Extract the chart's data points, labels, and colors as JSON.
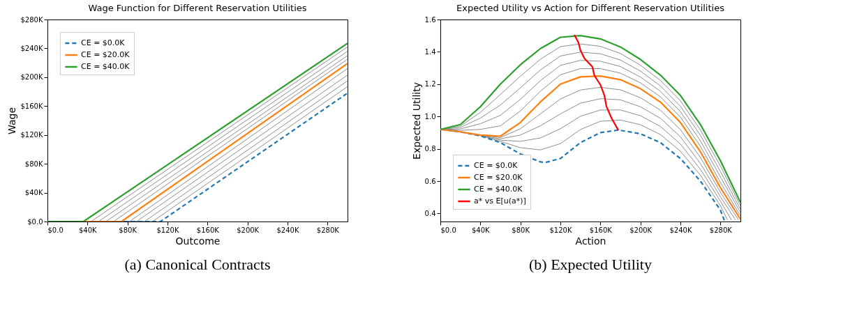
{
  "chart_data": [
    {
      "type": "line",
      "title": "Wage Function for Different Reservation Utilities",
      "xlabel": "Outcome",
      "ylabel": "Wage",
      "grid": false,
      "legend": "top left",
      "xlim": [
        0,
        300
      ],
      "ylim": [
        0,
        280
      ],
      "xticks": [
        {
          "value": 0,
          "label": "$0.0"
        },
        {
          "value": 40,
          "label": "$40K"
        },
        {
          "value": 80,
          "label": "$80K"
        },
        {
          "value": 120,
          "label": "$120K"
        },
        {
          "value": 160,
          "label": "$160K"
        },
        {
          "value": 200,
          "label": "$200K"
        },
        {
          "value": 240,
          "label": "$240K"
        },
        {
          "value": 280,
          "label": "$280K"
        }
      ],
      "yticks": [
        {
          "value": 0,
          "label": "$0.0"
        },
        {
          "value": 40,
          "label": "$40K"
        },
        {
          "value": 80,
          "label": "$80K"
        },
        {
          "value": 120,
          "label": "$120K"
        },
        {
          "value": 160,
          "label": "$160K"
        },
        {
          "value": 200,
          "label": "$200K"
        },
        {
          "value": 240,
          "label": "$240K"
        },
        {
          "value": 280,
          "label": "$280K"
        }
      ],
      "annotations": [
        "(a) Canonical Contracts"
      ],
      "series": [
        {
          "color": "#808080",
          "x": [
            0,
            43.5,
            300
          ],
          "values": [
            0,
            0,
            242
          ]
        },
        {
          "color": "#808080",
          "x": [
            0,
            51,
            300
          ],
          "values": [
            0,
            0,
            236
          ]
        },
        {
          "color": "#808080",
          "x": [
            0,
            58.5,
            300
          ],
          "values": [
            0,
            0,
            230
          ]
        },
        {
          "color": "#808080",
          "x": [
            0,
            66,
            300
          ],
          "values": [
            0,
            0,
            225
          ]
        },
        {
          "color": "#808080",
          "x": [
            0,
            82,
            300
          ],
          "values": [
            0,
            0,
            212
          ]
        },
        {
          "color": "#808080",
          "x": [
            0,
            89,
            300
          ],
          "values": [
            0,
            0,
            203
          ]
        },
        {
          "color": "#808080",
          "x": [
            0,
            97,
            300
          ],
          "values": [
            0,
            0,
            195
          ]
        },
        {
          "color": "#808080",
          "x": [
            0,
            105,
            300
          ],
          "values": [
            0,
            0,
            187
          ]
        },
        {
          "name": "CE = $0.0K",
          "color": "#1f77b4",
          "line_style": "dashed",
          "x": [
            0,
            113,
            300
          ],
          "values": [
            0,
            0,
            178
          ]
        },
        {
          "name": "CE = $20.0K",
          "color": "#ff7f0e",
          "x": [
            0,
            74,
            300
          ],
          "values": [
            0,
            0,
            219
          ]
        },
        {
          "name": "CE = $40.0K",
          "color": "#2ca02c",
          "x": [
            0,
            36,
            300
          ],
          "values": [
            0,
            0,
            247
          ]
        }
      ]
    },
    {
      "type": "line",
      "title": "Expected Utility vs Action for Different Reservation Utilities",
      "xlabel": "Action",
      "ylabel": "Expected Utility",
      "grid": false,
      "legend": "bottom left",
      "xlim": [
        0,
        300
      ],
      "ylim": [
        0.35,
        1.6
      ],
      "xticks": [
        {
          "value": 0,
          "label": "$0.0"
        },
        {
          "value": 40,
          "label": "$40K"
        },
        {
          "value": 80,
          "label": "$80K"
        },
        {
          "value": 120,
          "label": "$120K"
        },
        {
          "value": 160,
          "label": "$160K"
        },
        {
          "value": 200,
          "label": "$200K"
        },
        {
          "value": 240,
          "label": "$240K"
        },
        {
          "value": 280,
          "label": "$280K"
        }
      ],
      "yticks": [
        0.4,
        0.6,
        0.8,
        {
          "value": 1.0,
          "label": "1.0"
        },
        1.2,
        1.4,
        1.6
      ],
      "annotations": [
        "(b) Expected Utility"
      ],
      "x": [
        0,
        20,
        40,
        60,
        80,
        100,
        120,
        140,
        160,
        180,
        200,
        220,
        240,
        260,
        280,
        300
      ],
      "series": [
        {
          "color": "#808080",
          "values": [
            0.92,
            0.941,
            1.025,
            1.136,
            1.249,
            1.354,
            1.432,
            1.449,
            1.434,
            1.39,
            1.317,
            1.223,
            1.097,
            0.916,
            0.693,
            0.447
          ]
        },
        {
          "color": "#808080",
          "values": [
            0.92,
            0.932,
            0.99,
            1.071,
            1.177,
            1.288,
            1.374,
            1.398,
            1.388,
            1.349,
            1.281,
            1.189,
            1.063,
            0.883,
            0.659,
            0.426
          ]
        },
        {
          "color": "#808080",
          "values": [
            0.92,
            0.923,
            0.955,
            1.007,
            1.106,
            1.222,
            1.316,
            1.347,
            1.342,
            1.309,
            1.244,
            1.156,
            1.03,
            0.849,
            0.626,
            0.406
          ]
        },
        {
          "color": "#808080",
          "values": [
            0.92,
            0.914,
            0.92,
            0.942,
            1.034,
            1.156,
            1.258,
            1.296,
            1.296,
            1.268,
            1.208,
            1.122,
            0.996,
            0.816,
            0.592,
            0.385
          ]
        },
        {
          "color": "#808080",
          "x": [
            0,
            20,
            40,
            60,
            80,
            100,
            120,
            140,
            160,
            180,
            200,
            220,
            240,
            260,
            280,
            298
          ],
          "values": [
            0.92,
            0.905,
            0.884,
            0.87,
            0.924,
            1.016,
            1.108,
            1.164,
            1.18,
            1.165,
            1.116,
            1.039,
            0.918,
            0.746,
            0.531,
            0.36
          ]
        },
        {
          "color": "#808080",
          "x": [
            0,
            20,
            40,
            60,
            80,
            100,
            120,
            140,
            160,
            180,
            200,
            220,
            240,
            260,
            280,
            295
          ],
          "values": [
            0.92,
            0.905,
            0.883,
            0.862,
            0.885,
            0.942,
            1.016,
            1.082,
            1.11,
            1.103,
            1.06,
            0.989,
            0.874,
            0.709,
            0.503,
            0.36
          ]
        },
        {
          "color": "#808080",
          "x": [
            0,
            20,
            40,
            60,
            80,
            100,
            120,
            140,
            160,
            180,
            200,
            220,
            240,
            260,
            280,
            291
          ],
          "values": [
            0.92,
            0.905,
            0.882,
            0.854,
            0.846,
            0.867,
            0.924,
            1.001,
            1.04,
            1.04,
            1.005,
            0.938,
            0.829,
            0.673,
            0.476,
            0.36
          ]
        },
        {
          "color": "#808080",
          "x": [
            0,
            20,
            40,
            60,
            80,
            100,
            120,
            140,
            160,
            180,
            200,
            220,
            240,
            260,
            280,
            287
          ],
          "values": [
            0.92,
            0.905,
            0.881,
            0.846,
            0.807,
            0.793,
            0.832,
            0.919,
            0.97,
            0.978,
            0.949,
            0.888,
            0.785,
            0.636,
            0.448,
            0.36
          ]
        },
        {
          "name": "CE = $0.0K",
          "color": "#1f77b4",
          "line_style": "dashed",
          "x": [
            0,
            20,
            40,
            60,
            80,
            100,
            105,
            120,
            140,
            160,
            178,
            200,
            220,
            240,
            260,
            280,
            284
          ],
          "values": [
            0.92,
            0.905,
            0.88,
            0.838,
            0.768,
            0.719,
            0.715,
            0.74,
            0.838,
            0.9,
            0.916,
            0.893,
            0.838,
            0.74,
            0.6,
            0.42,
            0.355
          ]
        },
        {
          "name": "CE = $20.0K",
          "color": "#ff7f0e",
          "values": [
            0.92,
            0.905,
            0.885,
            0.878,
            0.963,
            1.09,
            1.2,
            1.245,
            1.25,
            1.228,
            1.172,
            1.089,
            0.963,
            0.782,
            0.559,
            0.364
          ]
        },
        {
          "name": "CE = $40.0K",
          "color": "#2ca02c",
          "values": [
            0.92,
            0.95,
            1.06,
            1.2,
            1.32,
            1.42,
            1.49,
            1.5,
            1.48,
            1.43,
            1.353,
            1.256,
            1.13,
            0.95,
            0.726,
            0.468
          ]
        },
        {
          "name": "a* vs E[u(a*)]",
          "color": "#ff0000",
          "x": [
            134,
            138,
            140,
            144,
            152,
            154,
            160,
            164,
            166,
            171,
            178
          ],
          "values": [
            1.505,
            1.458,
            1.41,
            1.36,
            1.307,
            1.253,
            1.196,
            1.13,
            1.063,
            0.991,
            0.914
          ]
        }
      ]
    }
  ]
}
